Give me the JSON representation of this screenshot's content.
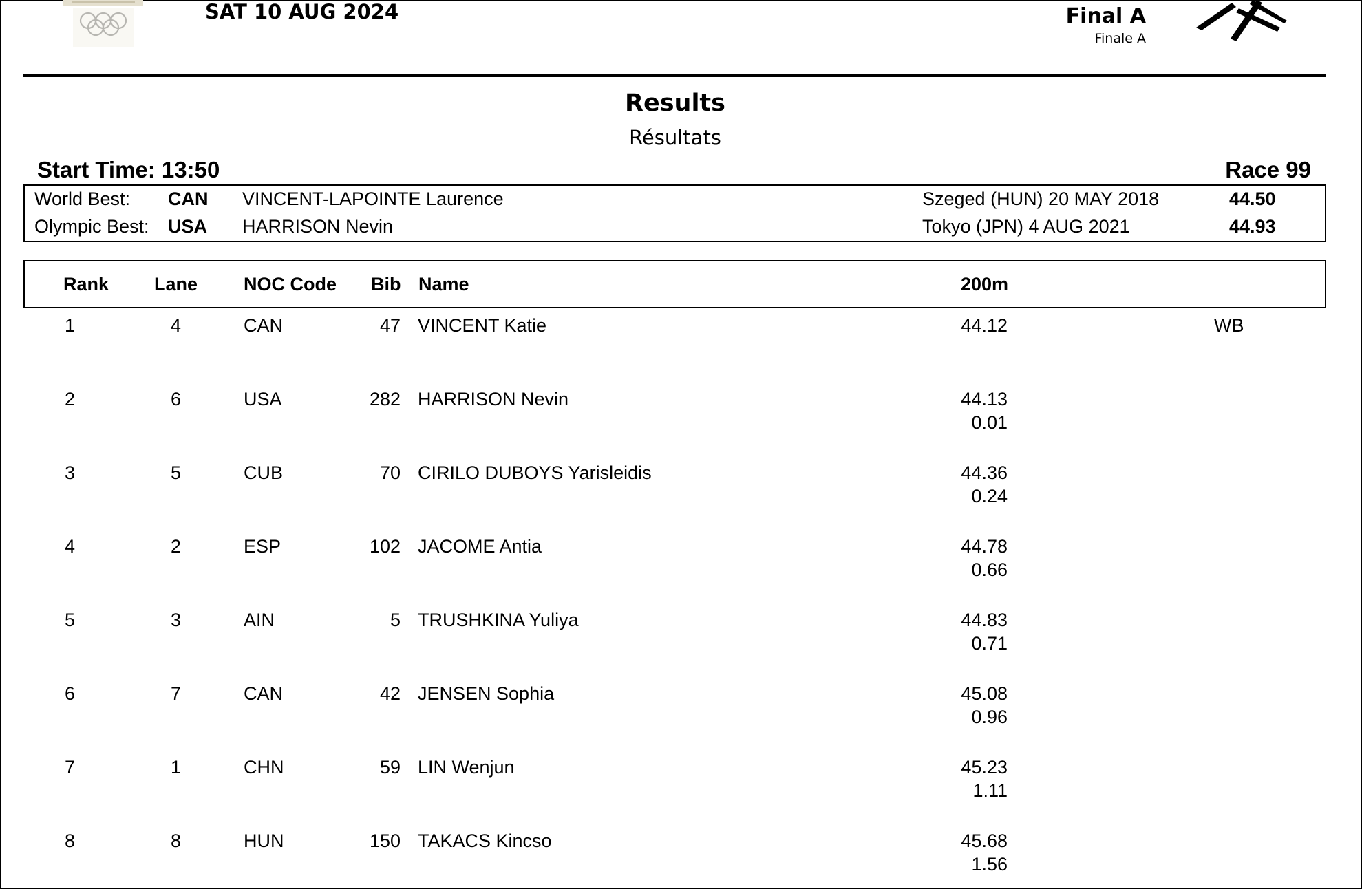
{
  "header": {
    "date": "SAT 10 AUG 2024",
    "phase_en": "Final A",
    "phase_fr": "Finale A",
    "title_en": "Results",
    "title_fr": "Résultats",
    "start_time": "Start Time: 13:50",
    "race": "Race 99"
  },
  "records": [
    {
      "label": "World Best:",
      "noc": "CAN",
      "name": "VINCENT-LAPOINTE Laurence",
      "place": "Szeged (HUN)  20 MAY 2018",
      "time": "44.50"
    },
    {
      "label": "Olympic Best:",
      "noc": "USA",
      "name": "HARRISON Nevin",
      "place": "Tokyo (JPN)  4 AUG 2021",
      "time": "44.93"
    }
  ],
  "table": {
    "headers": {
      "rank": "Rank",
      "lane": "Lane",
      "noc": "NOC Code",
      "bib": "Bib",
      "name": "Name",
      "split": "200m"
    },
    "rows": [
      {
        "rank": "1",
        "lane": "4",
        "noc": "CAN",
        "bib": "47",
        "name": "VINCENT Katie",
        "time": "44.12",
        "gap": "",
        "record": "WB"
      },
      {
        "rank": "2",
        "lane": "6",
        "noc": "USA",
        "bib": "282",
        "name": "HARRISON Nevin",
        "time": "44.13",
        "gap": "0.01",
        "record": ""
      },
      {
        "rank": "3",
        "lane": "5",
        "noc": "CUB",
        "bib": "70",
        "name": "CIRILO DUBOYS Yarisleidis",
        "time": "44.36",
        "gap": "0.24",
        "record": ""
      },
      {
        "rank": "4",
        "lane": "2",
        "noc": "ESP",
        "bib": "102",
        "name": "JACOME Antia",
        "time": "44.78",
        "gap": "0.66",
        "record": ""
      },
      {
        "rank": "5",
        "lane": "3",
        "noc": "AIN",
        "bib": "5",
        "name": "TRUSHKINA Yuliya",
        "time": "44.83",
        "gap": "0.71",
        "record": ""
      },
      {
        "rank": "6",
        "lane": "7",
        "noc": "CAN",
        "bib": "42",
        "name": "JENSEN Sophia",
        "time": "45.08",
        "gap": "0.96",
        "record": ""
      },
      {
        "rank": "7",
        "lane": "1",
        "noc": "CHN",
        "bib": "59",
        "name": "LIN Wenjun",
        "time": "45.23",
        "gap": "1.11",
        "record": ""
      },
      {
        "rank": "8",
        "lane": "8",
        "noc": "HUN",
        "bib": "150",
        "name": "TAKACS Kincso",
        "time": "45.68",
        "gap": "1.56",
        "record": ""
      }
    ]
  }
}
